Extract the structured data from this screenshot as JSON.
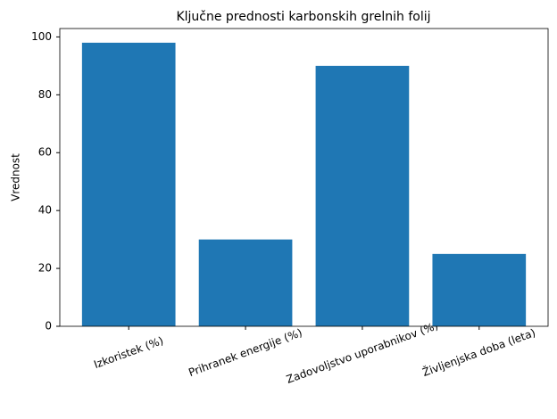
{
  "chart_data": {
    "type": "bar",
    "title": "Ključne prednosti karbonskih grelnih folij",
    "y_label": "Vrednost",
    "categories": [
      "Izkoristek (%)",
      "Prihranek energije (%)",
      "Zadovoljstvo uporabnikov (%)",
      "Življenjska doba (leta)"
    ],
    "values": [
      98,
      30,
      90,
      25
    ],
    "color": "#1f77b4",
    "ylim": [
      0,
      102.9
    ],
    "yticks": [
      0,
      20,
      40,
      60,
      80,
      100
    ],
    "grid": false
  }
}
